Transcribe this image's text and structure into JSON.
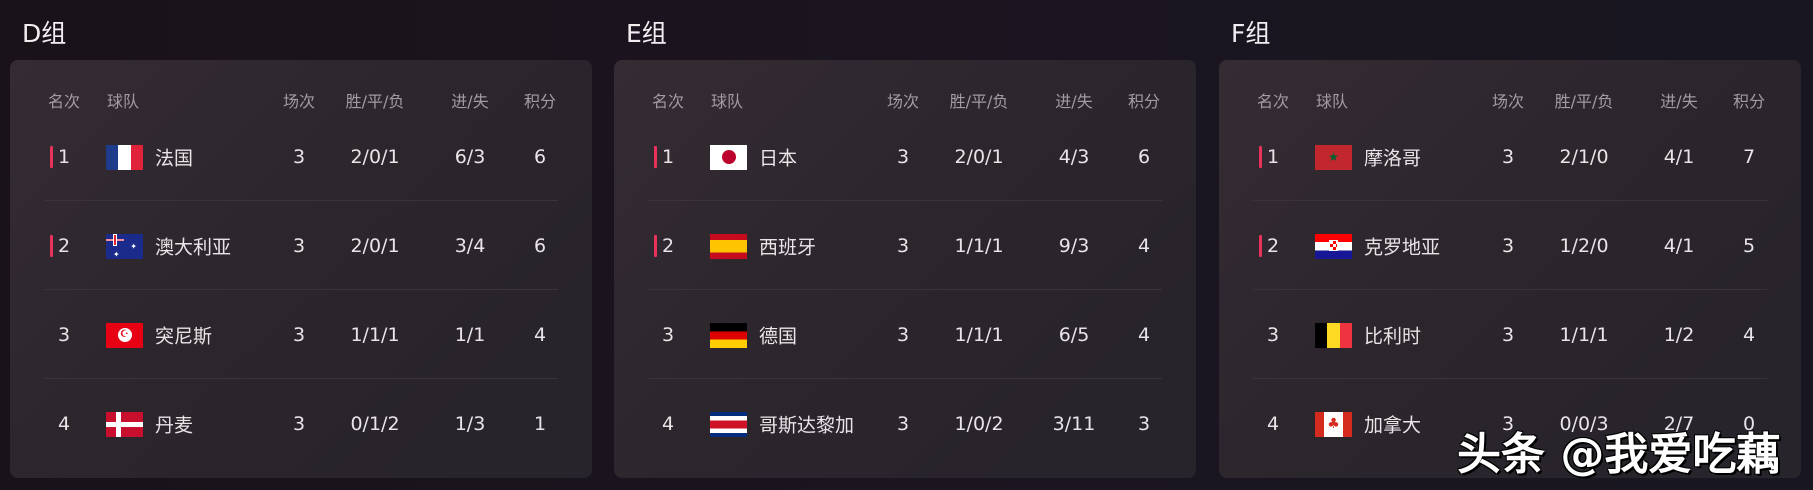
{
  "headers": {
    "rank": "名次",
    "team": "球队",
    "played": "场次",
    "wdl": "胜/平/负",
    "goals": "进/失",
    "points": "积分"
  },
  "accent_color": "#e8325a",
  "groups": [
    {
      "title": "D组",
      "rows": [
        {
          "rank": "1",
          "flag": "france-flag",
          "team": "法国",
          "played": "3",
          "wdl": "2/0/1",
          "goals": "6/3",
          "points": "6",
          "qualified": true
        },
        {
          "rank": "2",
          "flag": "australia-flag",
          "team": "澳大利亚",
          "played": "3",
          "wdl": "2/0/1",
          "goals": "3/4",
          "points": "6",
          "qualified": true
        },
        {
          "rank": "3",
          "flag": "tunisia-flag",
          "team": "突尼斯",
          "played": "3",
          "wdl": "1/1/1",
          "goals": "1/1",
          "points": "4",
          "qualified": false
        },
        {
          "rank": "4",
          "flag": "denmark-flag",
          "team": "丹麦",
          "played": "3",
          "wdl": "0/1/2",
          "goals": "1/3",
          "points": "1",
          "qualified": false
        }
      ]
    },
    {
      "title": "E组",
      "rows": [
        {
          "rank": "1",
          "flag": "japan-flag",
          "team": "日本",
          "played": "3",
          "wdl": "2/0/1",
          "goals": "4/3",
          "points": "6",
          "qualified": true
        },
        {
          "rank": "2",
          "flag": "spain-flag",
          "team": "西班牙",
          "played": "3",
          "wdl": "1/1/1",
          "goals": "9/3",
          "points": "4",
          "qualified": true
        },
        {
          "rank": "3",
          "flag": "germany-flag",
          "team": "德国",
          "played": "3",
          "wdl": "1/1/1",
          "goals": "6/5",
          "points": "4",
          "qualified": false
        },
        {
          "rank": "4",
          "flag": "costa-rica-flag",
          "team": "哥斯达黎加",
          "played": "3",
          "wdl": "1/0/2",
          "goals": "3/11",
          "points": "3",
          "qualified": false
        }
      ]
    },
    {
      "title": "F组",
      "rows": [
        {
          "rank": "1",
          "flag": "morocco-flag",
          "team": "摩洛哥",
          "played": "3",
          "wdl": "2/1/0",
          "goals": "4/1",
          "points": "7",
          "qualified": true
        },
        {
          "rank": "2",
          "flag": "croatia-flag",
          "team": "克罗地亚",
          "played": "3",
          "wdl": "1/2/0",
          "goals": "4/1",
          "points": "5",
          "qualified": true
        },
        {
          "rank": "3",
          "flag": "belgium-flag",
          "team": "比利时",
          "played": "3",
          "wdl": "1/1/1",
          "goals": "1/2",
          "points": "4",
          "qualified": false
        },
        {
          "rank": "4",
          "flag": "canada-flag",
          "team": "加拿大",
          "played": "3",
          "wdl": "0/0/3",
          "goals": "2/7",
          "points": "0",
          "qualified": false
        }
      ]
    }
  ],
  "watermark": "头条 @我爱吃藕"
}
